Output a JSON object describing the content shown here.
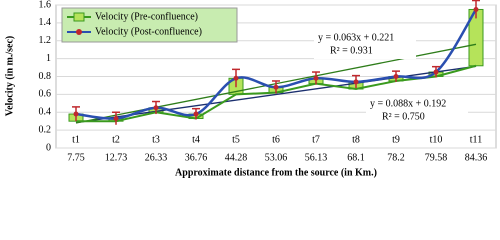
{
  "chart_data": {
    "type": "line",
    "x_label": "Approximate distance from the source (in Km.)",
    "y_label": "Velocity (in m./sec)",
    "categories": [
      "7.75",
      "12.73",
      "26.33",
      "36.76",
      "44.28",
      "53.06",
      "56.13",
      "68.1",
      "78.2",
      "79.58",
      "84.36"
    ],
    "point_labels": [
      "t1",
      "t2",
      "t3",
      "t4",
      "t5",
      "t6",
      "t7",
      "t8",
      "t9",
      "t10",
      "t11"
    ],
    "series": [
      {
        "name": "Velocity (Pre-confluence)",
        "color": "#3a9a1e",
        "values": [
          0.3,
          0.3,
          0.4,
          0.33,
          0.6,
          0.62,
          0.72,
          0.66,
          0.75,
          0.8,
          0.92
        ]
      },
      {
        "name": "Velocity (Post-confluence)",
        "color": "#2a4fb0",
        "values": [
          0.38,
          0.33,
          0.45,
          0.38,
          0.78,
          0.68,
          0.78,
          0.74,
          0.8,
          0.85,
          1.55
        ],
        "errors": [
          0.08,
          0.07,
          0.07,
          0.06,
          0.1,
          0.07,
          0.07,
          0.07,
          0.06,
          0.06,
          0.1
        ]
      }
    ],
    "box_color": "#b5e35a",
    "error_color": "#c0282d",
    "trendlines": [
      {
        "slope": 0.063,
        "intercept": 0.221,
        "color": "#1b2f6e",
        "equation": "y = 0.063x + 0.221",
        "r2": 0.931,
        "r2_label": "R² = 0.931"
      },
      {
        "slope": 0.088,
        "intercept": 0.192,
        "color": "#2e7d1a",
        "equation": "y = 0.088x + 0.192",
        "r2": 0.75,
        "r2_label": "R² = 0.750"
      }
    ],
    "ylim": [
      0,
      1.6
    ],
    "yticks": [
      0,
      {
        "value": 0.2,
        "label": "0.2"
      },
      {
        "value": 0.4,
        "label": "0.4"
      },
      {
        "value": 0.6,
        "label": "0.6"
      },
      {
        "value": 0.8,
        "label": "0.8"
      },
      1,
      {
        "value": 1.2,
        "label": "1.2"
      },
      {
        "value": 1.4,
        "label": "1.4"
      },
      {
        "value": 1.6,
        "label": "1.6"
      }
    ],
    "grid": true,
    "legend": "top-left"
  }
}
